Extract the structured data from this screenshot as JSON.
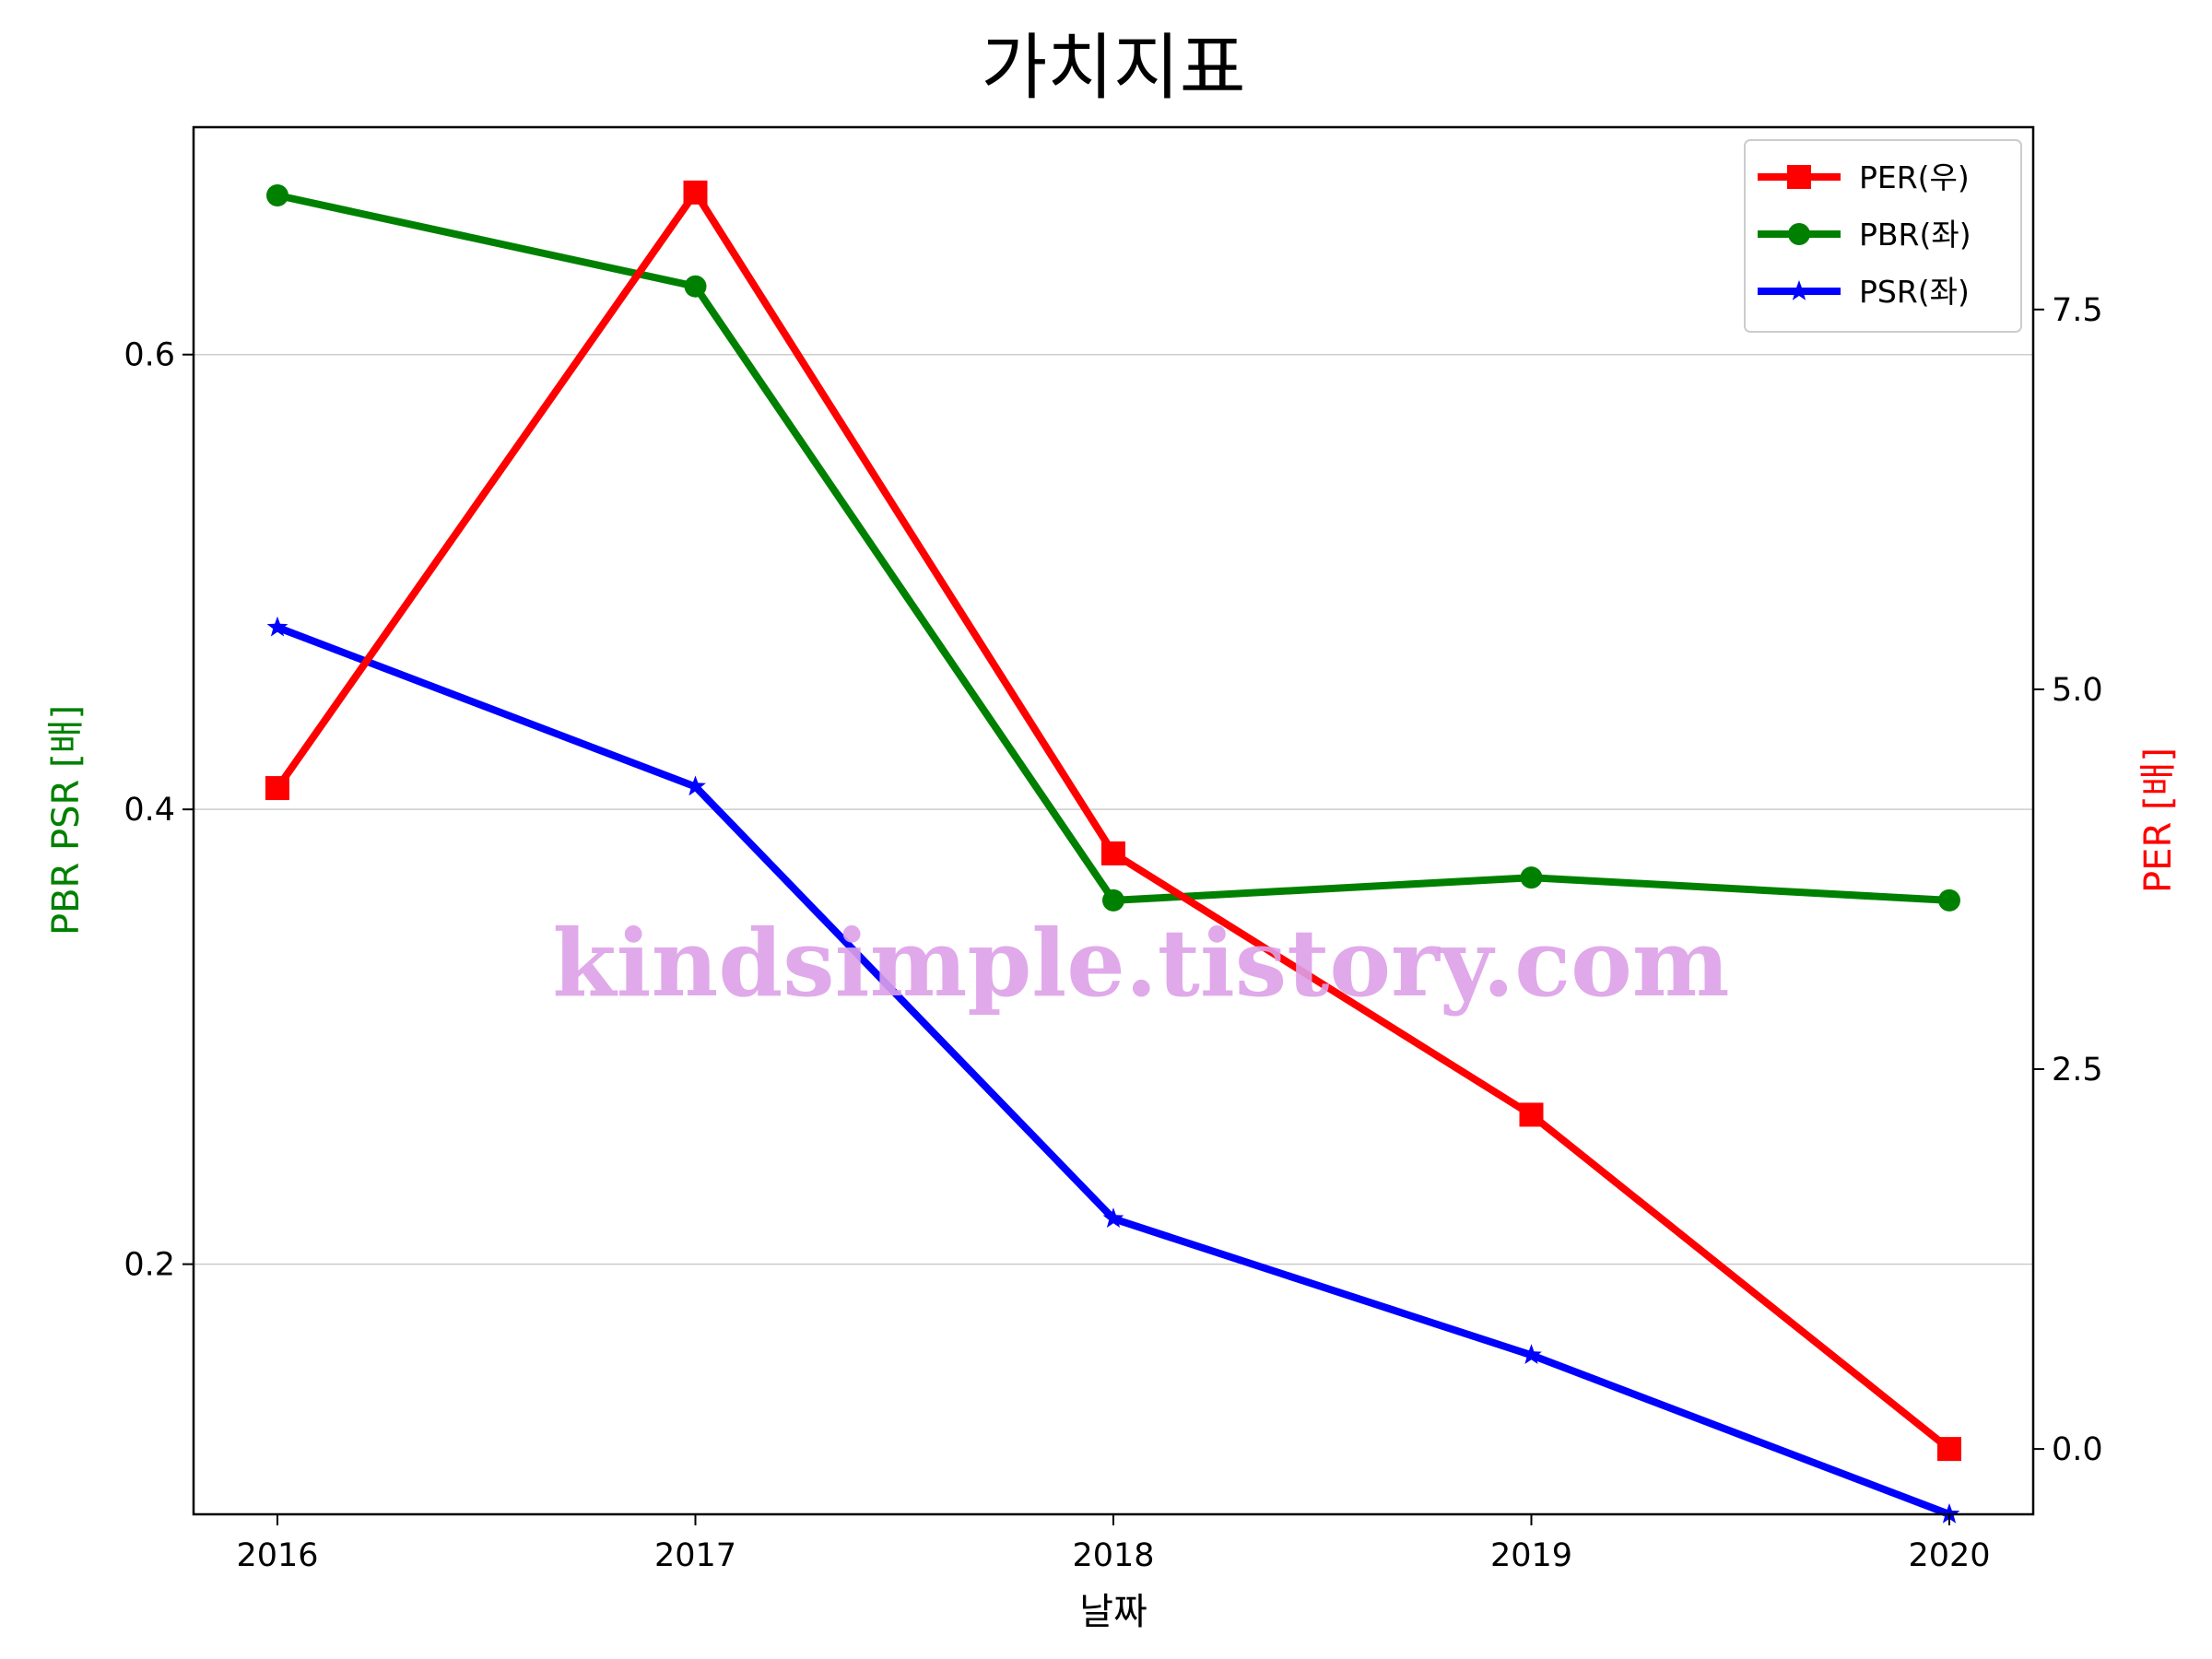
{
  "chart_data": {
    "type": "line",
    "title": "가치지표",
    "xlabel": "날짜",
    "ylabel_left": "PBR PSR [배]",
    "ylabel_right": "PER [배]",
    "categories": [
      "2016",
      "2017",
      "2018",
      "2019",
      "2020"
    ],
    "y_left": {
      "ylim": [
        0.09,
        0.7
      ],
      "ticks": [
        "0.2",
        "0.4",
        "0.6"
      ],
      "tick_values": [
        0.2,
        0.4,
        0.6
      ]
    },
    "y_right": {
      "ylim": [
        -0.43,
        8.7
      ],
      "ticks": [
        "0.0",
        "2.5",
        "5.0",
        "7.5"
      ],
      "tick_values": [
        0,
        2.5,
        5.0,
        7.5
      ]
    },
    "grid": "horizontal",
    "legend_position": "top-right",
    "series": [
      {
        "name": "PER(우)",
        "axis": "right",
        "color": "#ff0000",
        "marker": "square",
        "values": [
          4.35,
          8.27,
          3.92,
          2.2,
          0.0
        ]
      },
      {
        "name": "PBR(좌)",
        "axis": "left",
        "color": "#008000",
        "marker": "circle",
        "values": [
          0.67,
          0.63,
          0.36,
          0.37,
          0.36
        ]
      },
      {
        "name": "PSR(좌)",
        "axis": "left",
        "color": "#0000ff",
        "marker": "star",
        "values": [
          0.48,
          0.41,
          0.22,
          0.16,
          0.09
        ]
      }
    ],
    "watermark": "kindsimple.tistory.com"
  }
}
